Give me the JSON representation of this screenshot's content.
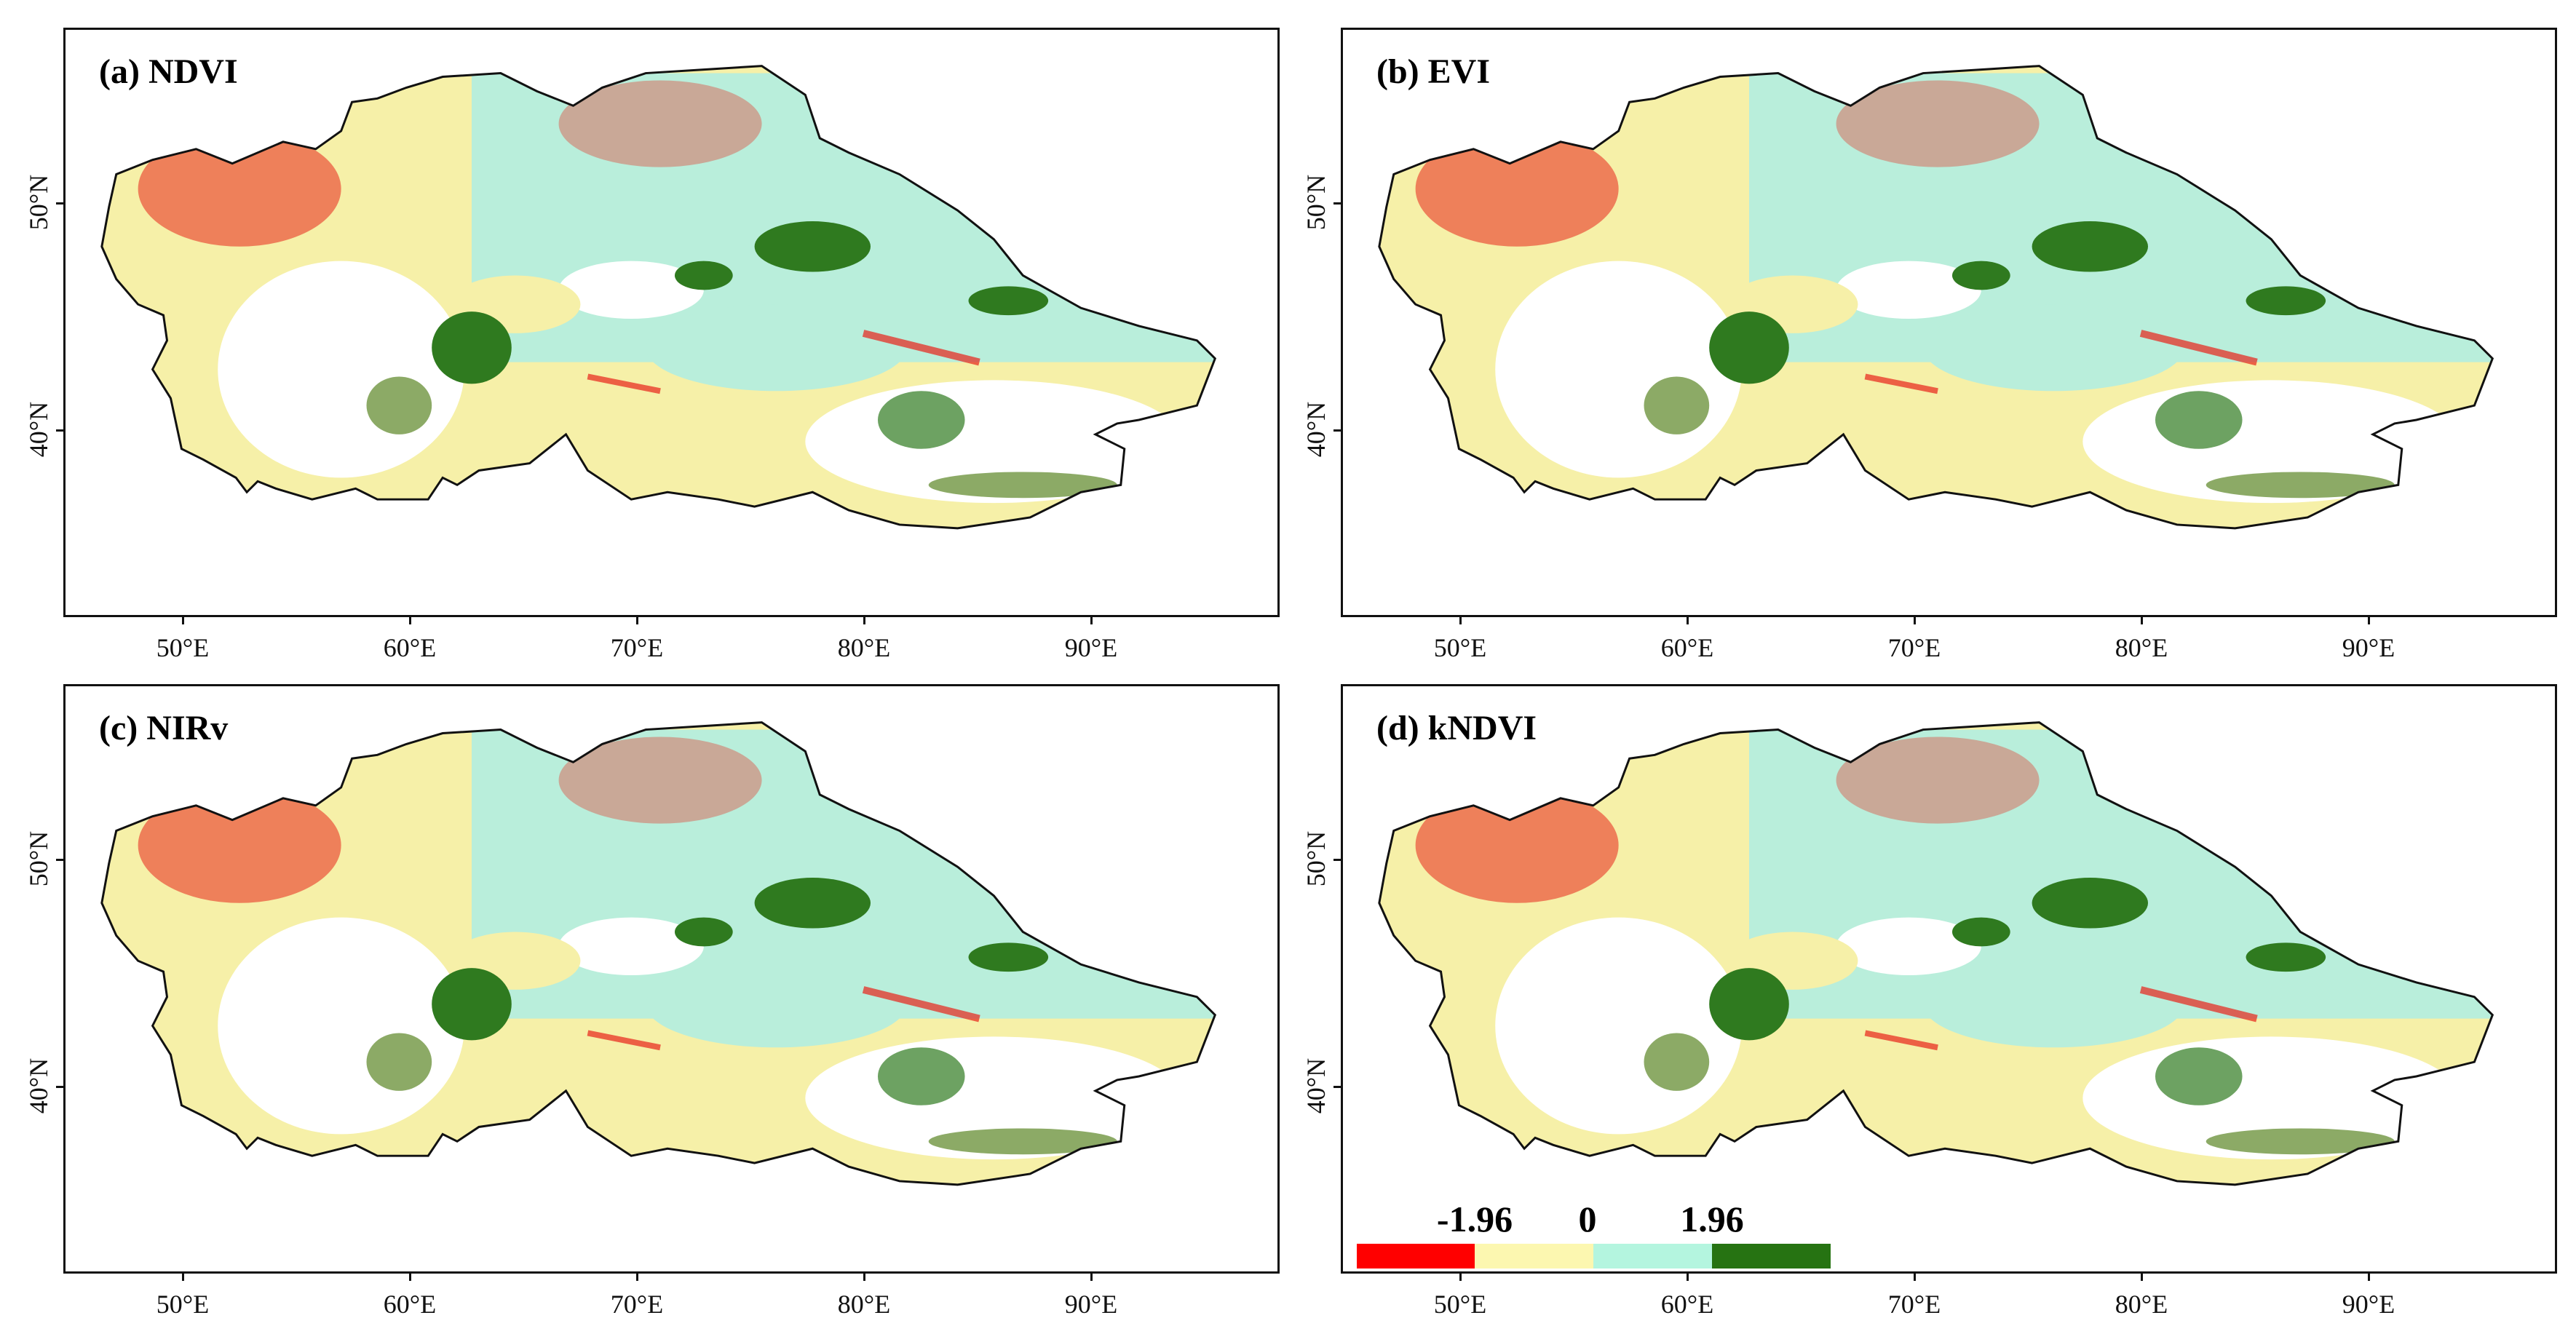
{
  "panels": [
    {
      "id": "a",
      "title": "(a) NDVI"
    },
    {
      "id": "b",
      "title": "(b) EVI"
    },
    {
      "id": "c",
      "title": "(c) NIRv"
    },
    {
      "id": "d",
      "title": "(d) kNDVI"
    }
  ],
  "x_ticks": [
    "50°E",
    "60°E",
    "70°E",
    "80°E",
    "90°E"
  ],
  "y_ticks": [
    "50°N",
    "40°N"
  ],
  "legend": {
    "labels": [
      "-1.96",
      "0",
      "1.96"
    ],
    "colors": [
      "#ff0000",
      "#fcf7b0",
      "#b4f5df",
      "#267312"
    ]
  },
  "map_colors": {
    "red": "#e8241a",
    "yellow": "#f6f0a8",
    "cyan": "#b9eedb",
    "green": "#2f7a1f",
    "olive": "#8caa66"
  }
}
